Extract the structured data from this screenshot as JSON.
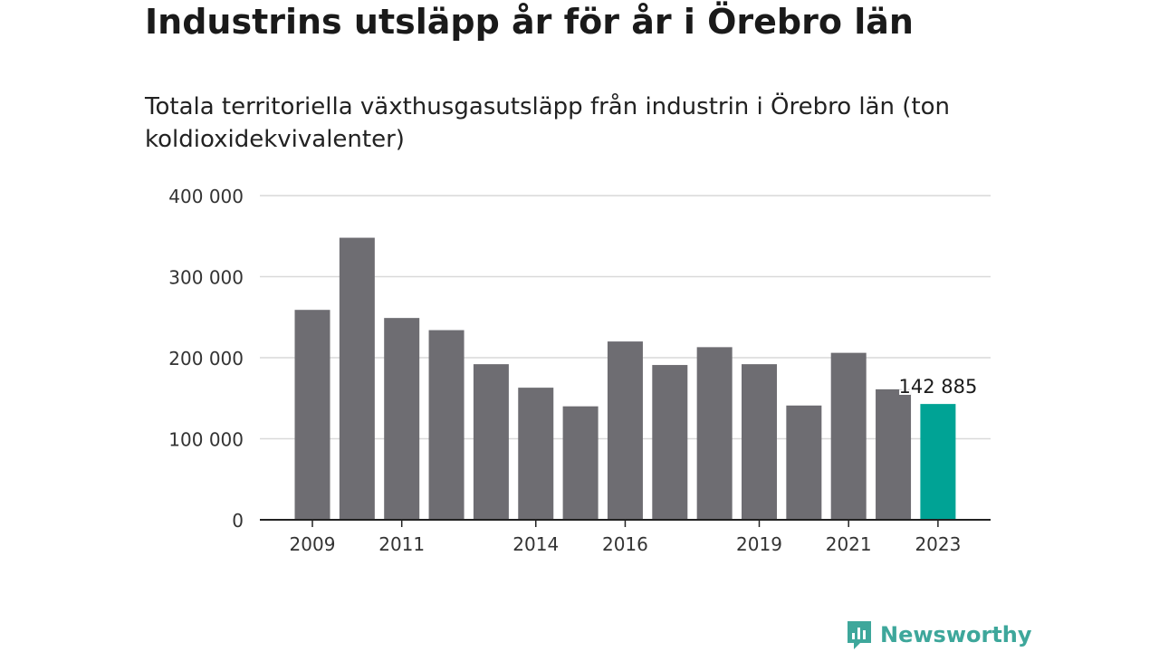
{
  "title": "Industrins utsläpp år för år i Örebro län",
  "subtitle": "Totala territoriella växthusgasutsläpp från industrin i Örebro län (ton koldioxidekvivalenter)",
  "brand": {
    "name": "Newsworthy",
    "icon": "newsworthy-logo-icon"
  },
  "colors": {
    "bar": "#6e6d72",
    "highlight": "#00a395",
    "grid": "#d9d9d9",
    "axis": "#222222",
    "brand": "#3ea79b"
  },
  "chart_data": {
    "type": "bar",
    "title": "Totala territoriella växthusgasutsläpp från industrin i Örebro län (ton koldioxidekvivalenter)",
    "categories": [
      "2009",
      "2010",
      "2011",
      "2012",
      "2013",
      "2014",
      "2015",
      "2016",
      "2017",
      "2018",
      "2019",
      "2020",
      "2021",
      "2022",
      "2023"
    ],
    "values": [
      259000,
      348000,
      249000,
      234000,
      192000,
      163000,
      140000,
      220000,
      191000,
      213000,
      192000,
      141000,
      206000,
      161000,
      142885
    ],
    "highlight_index": 14,
    "data_label": "142 885",
    "x_tick_labels": [
      "2009",
      "2011",
      "2014",
      "2016",
      "2019",
      "2021",
      "2023"
    ],
    "y_ticks": [
      0,
      100000,
      200000,
      300000,
      400000
    ],
    "y_tick_labels": [
      "0",
      "100 000",
      "200 000",
      "300 000",
      "400 000"
    ],
    "ylim": [
      0,
      400000
    ],
    "xlabel": "",
    "ylabel": "",
    "grid": true,
    "legend": "none"
  }
}
